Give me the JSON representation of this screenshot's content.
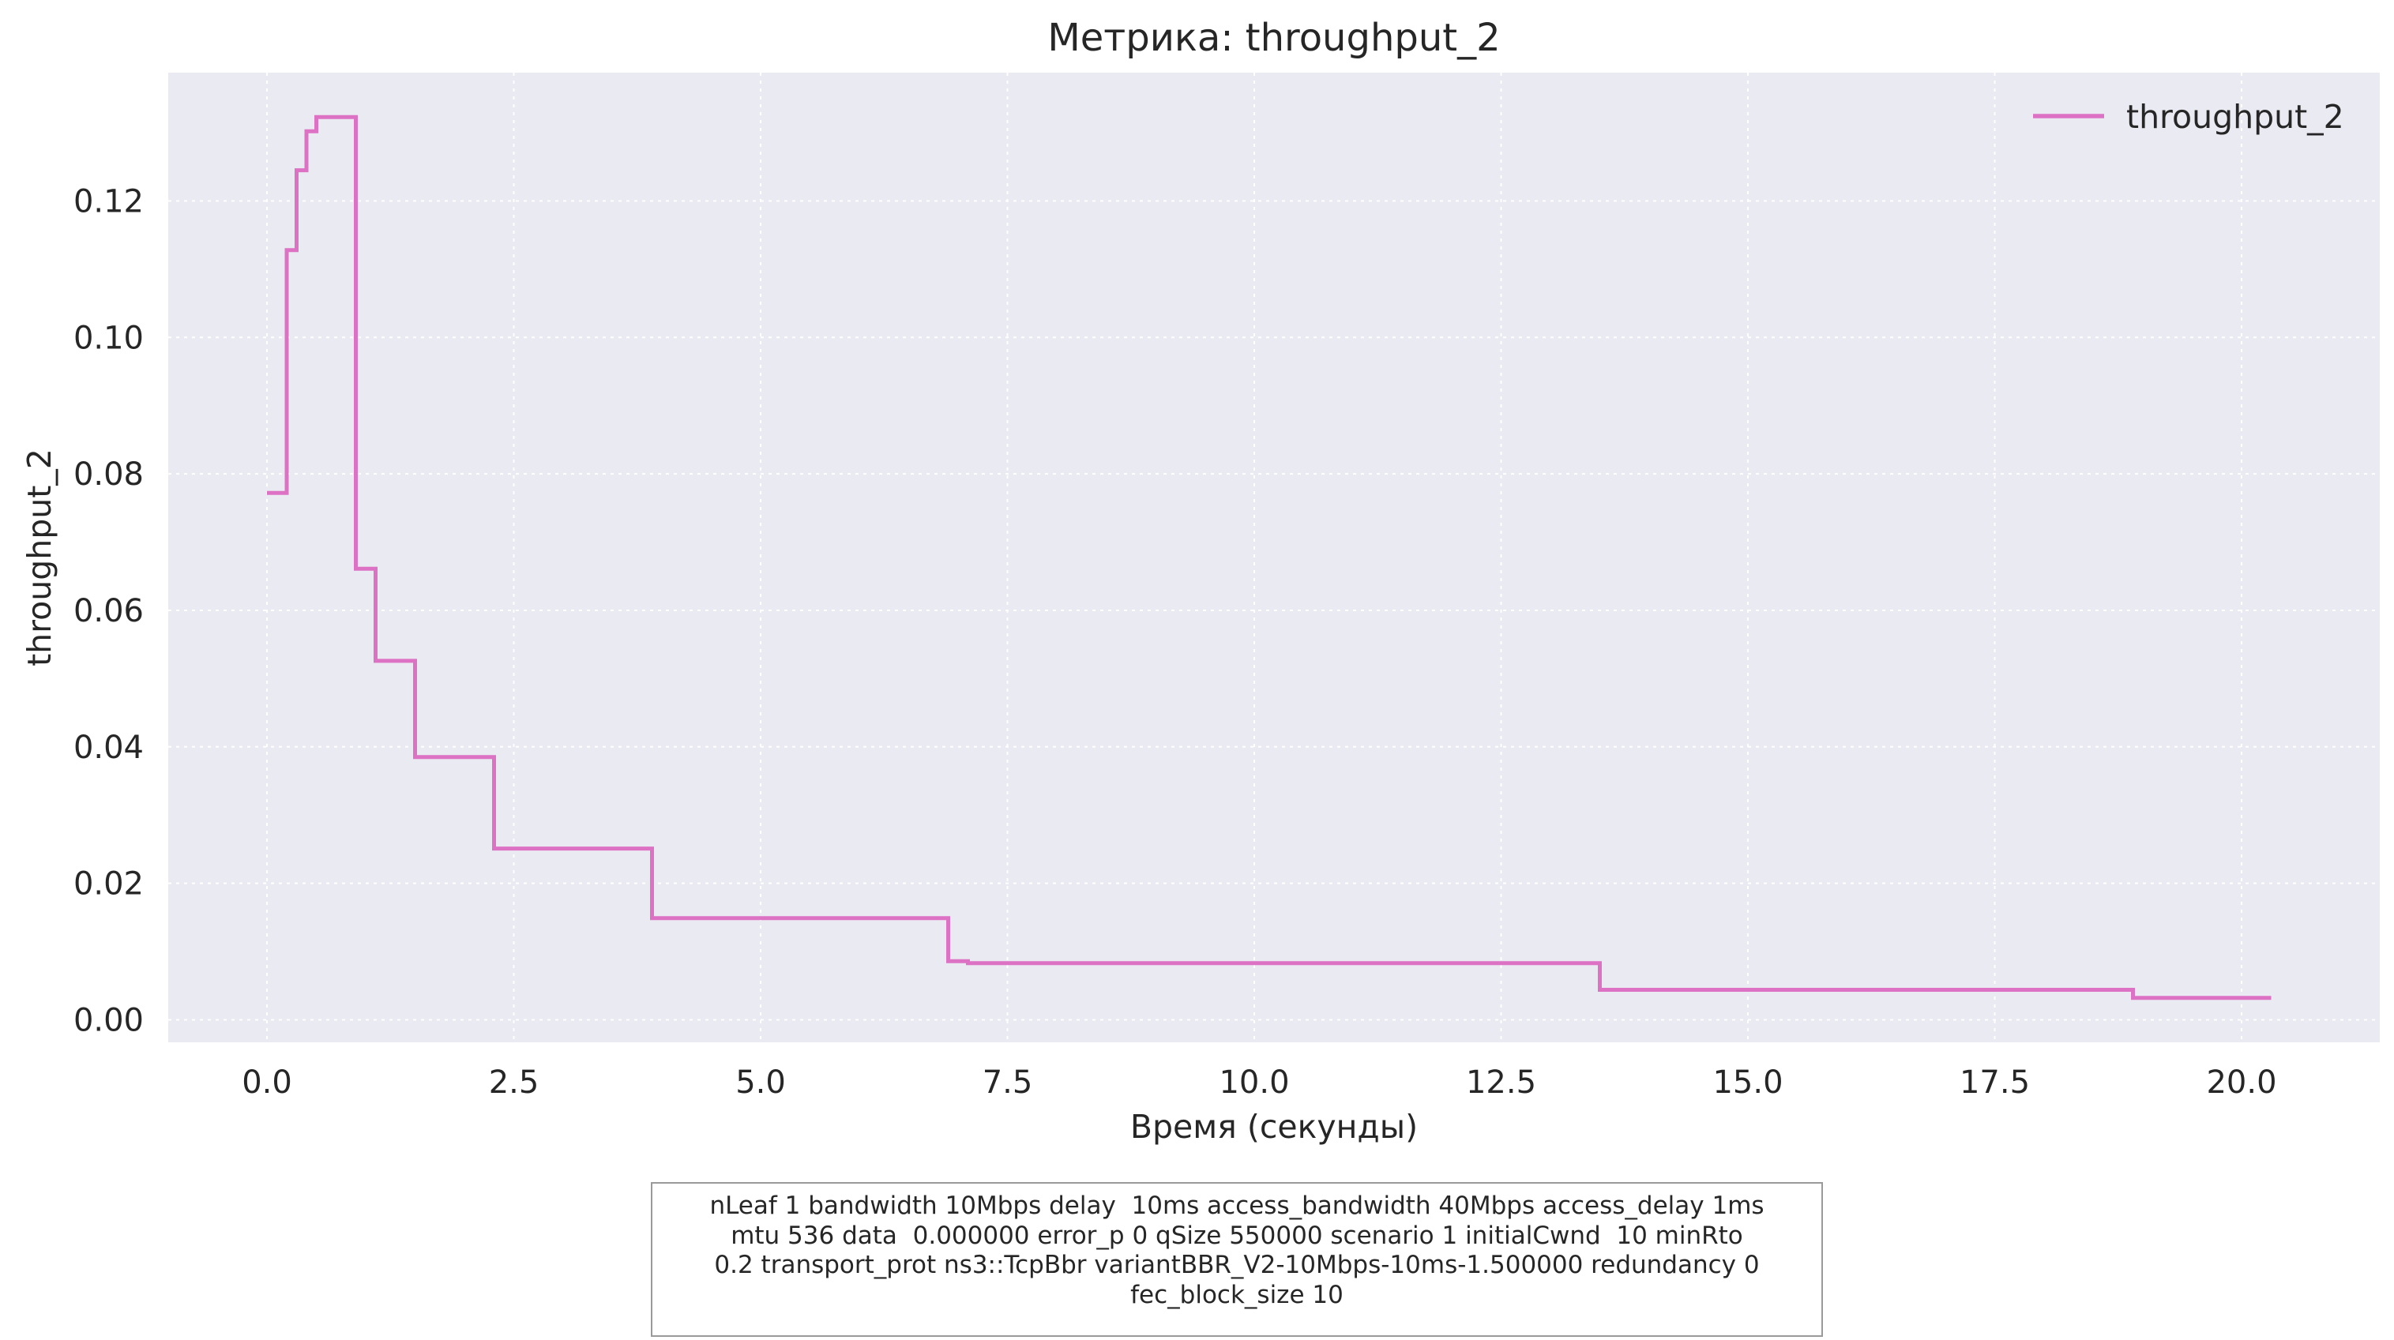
{
  "chart_data": {
    "type": "line",
    "title": "Метрика: throughput_2",
    "xlabel": "Время (секунды)",
    "ylabel": "throughput_2",
    "xlim": [
      -1.0,
      21.4
    ],
    "ylim": [
      -0.0033,
      0.1388
    ],
    "x_ticks": [
      0.0,
      2.5,
      5.0,
      7.5,
      10.0,
      12.5,
      15.0,
      17.5,
      20.0
    ],
    "x_tick_labels": [
      "0.0",
      "2.5",
      "5.0",
      "7.5",
      "10.0",
      "12.5",
      "15.0",
      "17.5",
      "20.0"
    ],
    "y_ticks": [
      0.0,
      0.02,
      0.04,
      0.06,
      0.08,
      0.1,
      0.12
    ],
    "y_tick_labels": [
      "0.00",
      "0.02",
      "0.04",
      "0.06",
      "0.08",
      "0.10",
      "0.12"
    ],
    "grid": true,
    "legend_position": "top-right",
    "step": "post",
    "series": [
      {
        "name": "throughput_2",
        "color": "#dd72c4",
        "x": [
          0.0,
          0.2,
          0.3,
          0.4,
          0.5,
          0.9,
          1.1,
          1.5,
          2.3,
          3.9,
          6.9,
          7.1,
          13.5,
          18.9,
          20.3
        ],
        "y": [
          0.0772,
          0.1128,
          0.1245,
          0.1302,
          0.1323,
          0.0661,
          0.0526,
          0.0385,
          0.0251,
          0.0149,
          0.0086,
          0.0083,
          0.0044,
          0.0032,
          0.0032
        ]
      }
    ]
  },
  "caption": {
    "lines": [
      "nLeaf 1 bandwidth 10Mbps delay  10ms access_bandwidth 40Mbps access_delay 1ms",
      "mtu 536 data  0.000000 error_p 0 qSize 550000 scenario 1 initialCwnd  10 minRto",
      "0.2 transport_prot ns3::TcpBbr variantBBR_V2-10Mbps-10ms-1.500000 redundancy 0",
      "fec_block_size 10"
    ]
  },
  "colors": {
    "plot_background": "#eaeaf2",
    "grid": "#ffffff",
    "series": "#dd72c4"
  }
}
